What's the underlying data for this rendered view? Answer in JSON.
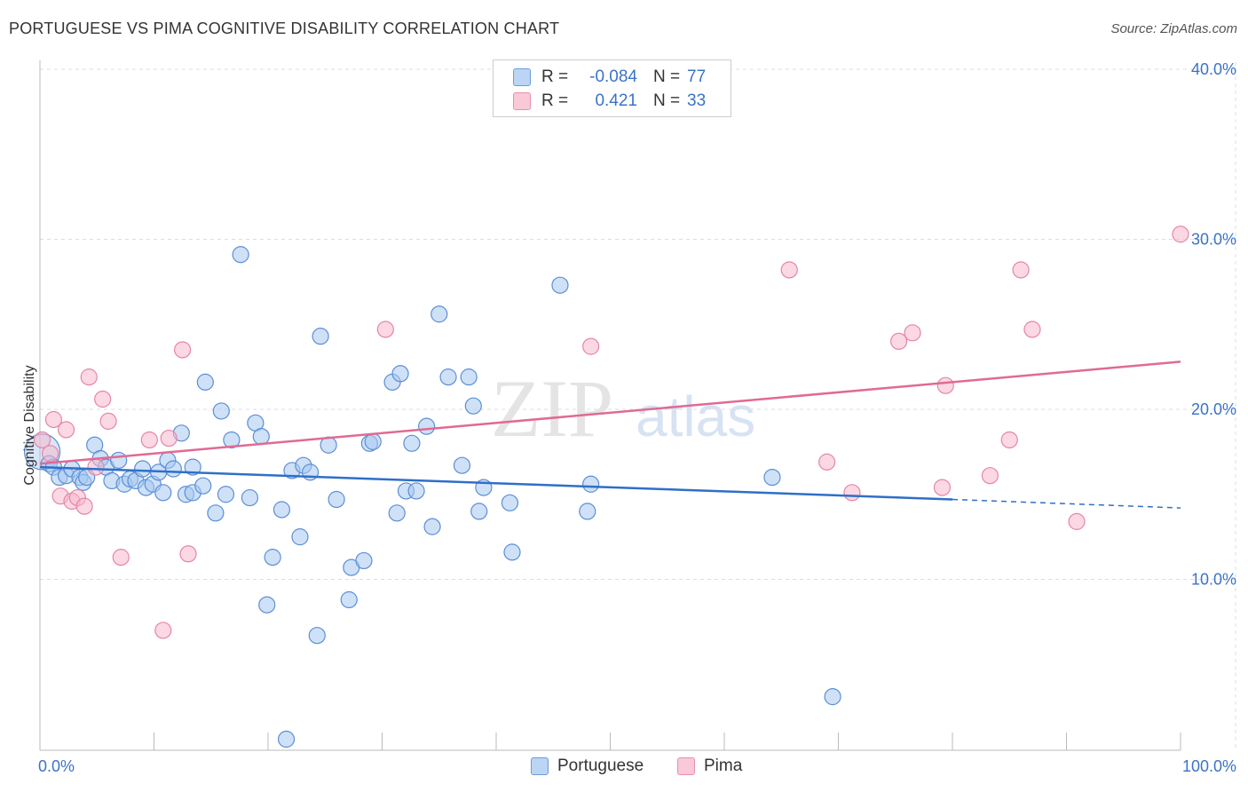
{
  "title": "PORTUGUESE VS PIMA COGNITIVE DISABILITY CORRELATION CHART",
  "source": "Source: ZipAtlas.com",
  "watermark": {
    "zip": "ZIP",
    "atlas": "atlas"
  },
  "legend": {
    "portuguese": {
      "r_label": "R =",
      "r_value": "-0.084",
      "n_label": "N =",
      "n_value": "77"
    },
    "pima": {
      "r_label": "R =",
      "r_value": "0.421",
      "n_label": "N =",
      "n_value": "33"
    }
  },
  "bottom_legend": {
    "portuguese": "Portuguese",
    "pima": "Pima"
  },
  "colors": {
    "portuguese_fill": "#a8c8f0",
    "portuguese_stroke": "#5b8fd6",
    "portuguese_line": "#2f6fc8",
    "pima_fill": "#f7b8cc",
    "pima_stroke": "#e586a6",
    "pima_line": "#e06a94",
    "tick_label": "#3a73c8",
    "grid": "#dddddd"
  },
  "chart_data": {
    "type": "scatter",
    "title": "PORTUGUESE VS PIMA COGNITIVE DISABILITY CORRELATION CHART",
    "xlabel": "",
    "ylabel": "Cognitive Disability",
    "xlim": [
      0,
      100
    ],
    "ylim": [
      0,
      40
    ],
    "x_tick_labels": [
      "0.0%",
      "100.0%"
    ],
    "y_ticks": [
      10,
      20,
      30,
      40
    ],
    "y_tick_labels": [
      "10.0%",
      "20.0%",
      "30.0%",
      "40.0%"
    ],
    "grid": true,
    "series": [
      {
        "name": "Portuguese",
        "r": -0.084,
        "n": 77,
        "trend": {
          "x0": 0,
          "y0": 16.6,
          "x1": 80,
          "y1": 14.7,
          "dash_to_x": 100,
          "dash_to_y": 14.2
        },
        "points": [
          [
            0.2,
            17.5
          ],
          [
            0.8,
            16.8
          ],
          [
            1.2,
            16.6
          ],
          [
            1.7,
            16.0
          ],
          [
            2.3,
            16.1
          ],
          [
            2.8,
            16.5
          ],
          [
            3.5,
            16.0
          ],
          [
            3.8,
            15.7
          ],
          [
            4.1,
            16.0
          ],
          [
            4.8,
            17.9
          ],
          [
            5.3,
            17.1
          ],
          [
            5.8,
            16.6
          ],
          [
            6.3,
            15.8
          ],
          [
            6.9,
            17.0
          ],
          [
            7.4,
            15.6
          ],
          [
            7.9,
            15.9
          ],
          [
            8.4,
            15.8
          ],
          [
            9.0,
            16.5
          ],
          [
            9.3,
            15.4
          ],
          [
            9.9,
            15.6
          ],
          [
            10.4,
            16.3
          ],
          [
            10.8,
            15.1
          ],
          [
            11.2,
            17.0
          ],
          [
            11.7,
            16.5
          ],
          [
            12.4,
            18.6
          ],
          [
            12.8,
            15.0
          ],
          [
            13.4,
            16.6
          ],
          [
            13.4,
            15.1
          ],
          [
            14.3,
            15.5
          ],
          [
            14.5,
            21.6
          ],
          [
            15.4,
            13.9
          ],
          [
            15.9,
            19.9
          ],
          [
            16.3,
            15.0
          ],
          [
            16.8,
            18.2
          ],
          [
            17.6,
            29.1
          ],
          [
            18.4,
            14.8
          ],
          [
            18.9,
            19.2
          ],
          [
            19.4,
            18.4
          ],
          [
            19.9,
            8.5
          ],
          [
            20.4,
            11.3
          ],
          [
            21.2,
            14.1
          ],
          [
            21.6,
            0.6
          ],
          [
            22.1,
            16.4
          ],
          [
            22.8,
            12.5
          ],
          [
            23.1,
            16.7
          ],
          [
            23.7,
            16.3
          ],
          [
            24.3,
            6.7
          ],
          [
            24.6,
            24.3
          ],
          [
            25.3,
            17.9
          ],
          [
            26.0,
            14.7
          ],
          [
            27.1,
            8.8
          ],
          [
            27.3,
            10.7
          ],
          [
            28.4,
            11.1
          ],
          [
            28.9,
            18.0
          ],
          [
            29.2,
            18.1
          ],
          [
            30.9,
            21.6
          ],
          [
            31.3,
            13.9
          ],
          [
            31.6,
            22.1
          ],
          [
            32.1,
            15.2
          ],
          [
            32.6,
            18.0
          ],
          [
            33.0,
            15.2
          ],
          [
            33.9,
            19.0
          ],
          [
            34.4,
            13.1
          ],
          [
            35.0,
            25.6
          ],
          [
            35.8,
            21.9
          ],
          [
            37.0,
            16.7
          ],
          [
            37.6,
            21.9
          ],
          [
            38.0,
            20.2
          ],
          [
            38.5,
            14.0
          ],
          [
            38.9,
            15.4
          ],
          [
            41.2,
            14.5
          ],
          [
            41.4,
            11.6
          ],
          [
            45.6,
            27.3
          ],
          [
            48.0,
            14.0
          ],
          [
            48.3,
            15.6
          ],
          [
            64.2,
            16.0
          ],
          [
            69.5,
            3.1
          ]
        ]
      },
      {
        "name": "Pima",
        "r": 0.421,
        "n": 33,
        "trend": {
          "x0": 0,
          "y0": 16.8,
          "x1": 100,
          "y1": 22.8
        },
        "points": [
          [
            0.2,
            18.2
          ],
          [
            0.9,
            17.4
          ],
          [
            1.2,
            19.4
          ],
          [
            1.8,
            14.9
          ],
          [
            2.3,
            18.8
          ],
          [
            2.8,
            14.6
          ],
          [
            3.3,
            14.8
          ],
          [
            3.9,
            14.3
          ],
          [
            4.3,
            21.9
          ],
          [
            4.9,
            16.6
          ],
          [
            5.5,
            20.6
          ],
          [
            6.0,
            19.3
          ],
          [
            7.1,
            11.3
          ],
          [
            9.6,
            18.2
          ],
          [
            10.8,
            7.0
          ],
          [
            11.3,
            18.3
          ],
          [
            12.5,
            23.5
          ],
          [
            13.0,
            11.5
          ],
          [
            30.3,
            24.7
          ],
          [
            48.3,
            23.7
          ],
          [
            65.7,
            28.2
          ],
          [
            69.0,
            16.9
          ],
          [
            71.2,
            15.1
          ],
          [
            75.3,
            24.0
          ],
          [
            76.5,
            24.5
          ],
          [
            79.1,
            15.4
          ],
          [
            79.4,
            21.4
          ],
          [
            83.3,
            16.1
          ],
          [
            85.0,
            18.2
          ],
          [
            86.0,
            28.2
          ],
          [
            87.0,
            24.7
          ],
          [
            90.9,
            13.4
          ],
          [
            100.0,
            30.3
          ]
        ]
      }
    ]
  }
}
